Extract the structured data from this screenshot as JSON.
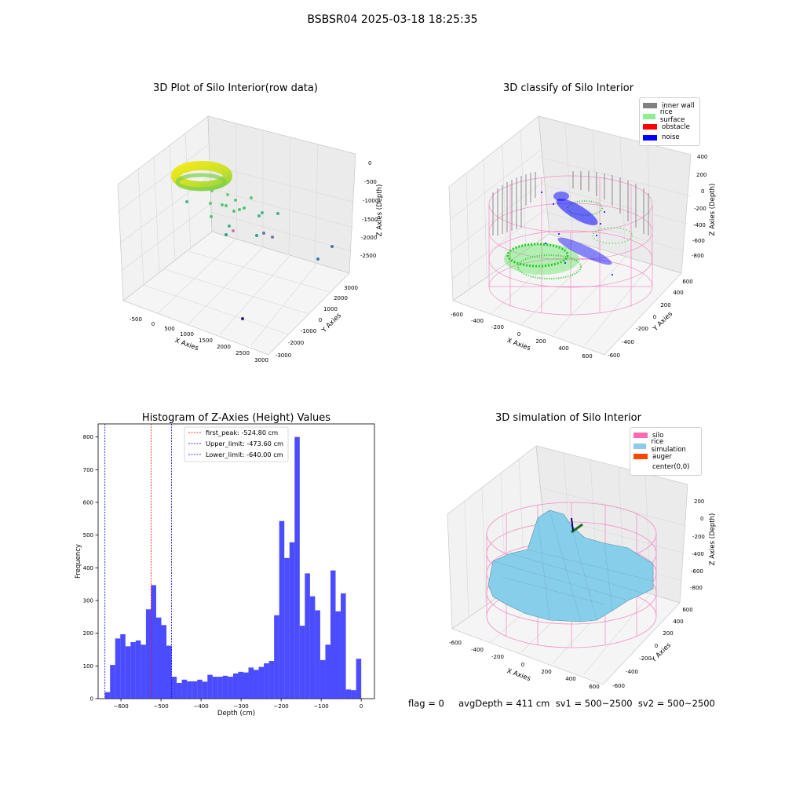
{
  "suptitle": "BSBSR04 2025-03-18 18:25:35",
  "footer": "flag = 0     avgDepth = 411 cm  sv1 = 500~2500  sv2 = 500~2500",
  "panel_raw": {
    "title": "3D Plot of Silo Interior(row data)",
    "xlabel": "X Axies",
    "ylabel": "Y Axies",
    "zlabel": "Z Axies (Depth)",
    "x_ticks": [
      "-500",
      "0",
      "500",
      "1000",
      "1500",
      "2000",
      "2500",
      "3000"
    ],
    "y_ticks": [
      "3000",
      "2000",
      "1000",
      "0",
      "-1000",
      "-2000",
      "-3000"
    ],
    "z_ticks": [
      "0",
      "-500",
      "-1000",
      "-1500",
      "-2000",
      "-2500"
    ]
  },
  "panel_classify": {
    "title": "3D classify of Silo Interior",
    "xlabel": "X Axies",
    "ylabel": "Y Axies",
    "zlabel": "Z Axies (Depth)",
    "x_ticks": [
      "-600",
      "-400",
      "-200",
      "0",
      "200",
      "400",
      "600"
    ],
    "y_ticks": [
      "600",
      "400",
      "200",
      "0",
      "-200",
      "-400",
      "-600"
    ],
    "z_ticks": [
      "400",
      "200",
      "0",
      "-200",
      "-400",
      "-600",
      "-800"
    ],
    "legend": [
      {
        "label": "inner wall",
        "color": "#808080"
      },
      {
        "label": "rice surface",
        "color": "#90ee90"
      },
      {
        "label": "obstacle",
        "color": "#ff0000"
      },
      {
        "label": "noise",
        "color": "#0000ff"
      }
    ]
  },
  "panel_sim": {
    "title": "3D simulation of Silo Interior",
    "xlabel": "X Axies",
    "ylabel": "Y Axies",
    "zlabel": "Z Axies (Depth)",
    "x_ticks": [
      "-600",
      "-400",
      "-200",
      "0",
      "200",
      "400",
      "600"
    ],
    "y_ticks": [
      "600",
      "400",
      "200",
      "0",
      "-200",
      "-400",
      "-600"
    ],
    "z_ticks": [
      "200",
      "0",
      "-200",
      "-400",
      "-600",
      "-800"
    ],
    "legend": [
      {
        "label": "silo",
        "color": "#ff69b4"
      },
      {
        "label": "rice simulation",
        "color": "#87ceeb"
      },
      {
        "label": "auger",
        "color": "#ff4500"
      },
      {
        "label": "center(0,0)",
        "color": "#ffffff"
      }
    ]
  },
  "chart_data": {
    "type": "bar",
    "title": "Histogram of Z-Axies (Height) Values",
    "xlabel": "Depth (cm)",
    "ylabel": "Frequency",
    "xlim": [
      -657,
      33
    ],
    "ylim": [
      0,
      840
    ],
    "x_ticks": [
      -600,
      -500,
      -400,
      -300,
      -200,
      -100,
      0
    ],
    "y_ticks": [
      0,
      100,
      200,
      300,
      400,
      500,
      600,
      700,
      800
    ],
    "bar_color": "#0000ff",
    "bar_alpha": 0.7,
    "bin_width": 12.8,
    "bin_start": -640,
    "counts": [
      20,
      103,
      184,
      197,
      160,
      173,
      178,
      165,
      273,
      347,
      248,
      225,
      162,
      67,
      48,
      58,
      53,
      53,
      58,
      52,
      73,
      67,
      67,
      70,
      67,
      77,
      82,
      80,
      95,
      88,
      97,
      108,
      115,
      255,
      543,
      430,
      478,
      800,
      223,
      383,
      313,
      270,
      118,
      165,
      392,
      267,
      322,
      28,
      26,
      122
    ],
    "vlines": [
      {
        "label": "first_peak: -524.80 cm",
        "value": -524.8,
        "color": "#ff0000"
      },
      {
        "label": "Upper_limit: -473.60 cm",
        "value": -473.6,
        "color": "#0000ff"
      },
      {
        "label": "Lower_limit: -640.00 cm",
        "value": -640.0,
        "color": "#0000ff"
      }
    ]
  }
}
